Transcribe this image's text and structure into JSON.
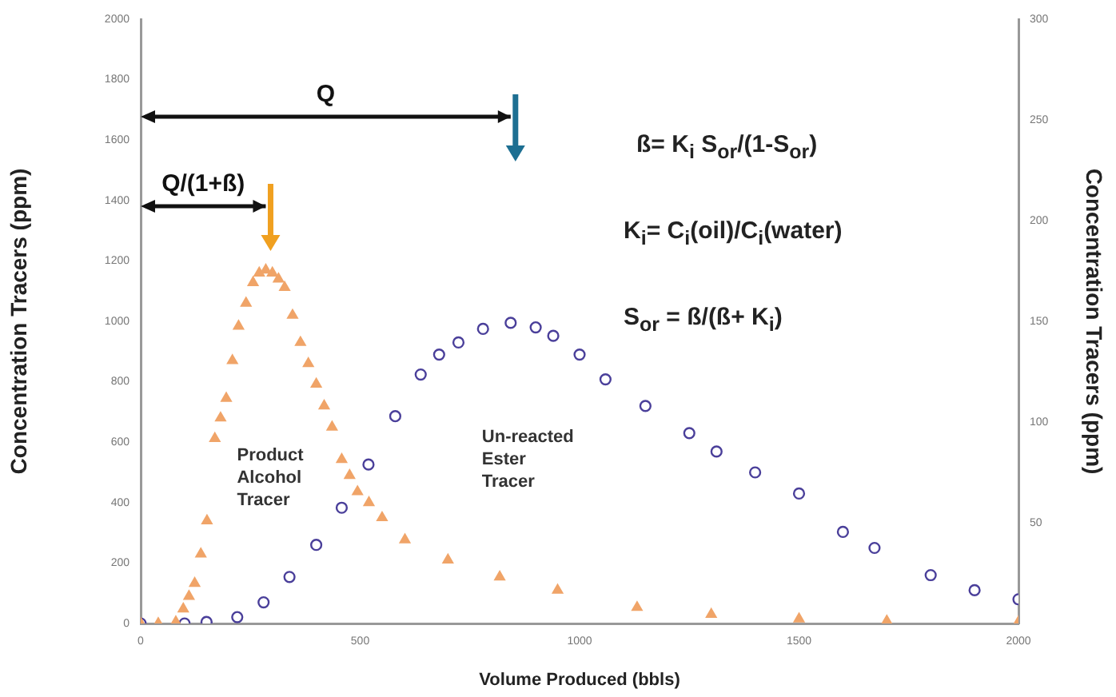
{
  "chart_data": {
    "type": "scatter",
    "xlabel": "Volume Produced (bbls)",
    "ylabel": "Concentration Tracers (ppm)",
    "y2label": "Concentration Tracers (ppm)",
    "xlim": [
      0,
      2000
    ],
    "xticks": [
      0,
      500,
      1000,
      1500,
      2000
    ],
    "ylim": [
      0,
      2000
    ],
    "yticks": [
      0,
      200,
      400,
      600,
      800,
      1000,
      1200,
      1400,
      1600,
      1800,
      2000
    ],
    "y2lim": [
      0,
      300
    ],
    "y2ticks": [
      50,
      100,
      150,
      200,
      250,
      300
    ],
    "grid": false,
    "legend": false,
    "series": [
      {
        "name": "Product Alcohol Tracer",
        "color": "#f0a468",
        "marker": "triangle",
        "x": [
          0,
          40,
          80,
          97,
          110,
          123,
          137,
          151,
          169,
          182,
          195,
          209,
          223,
          240,
          256,
          270,
          285,
          300,
          314,
          328,
          346,
          364,
          382,
          400,
          418,
          436,
          458,
          476,
          494,
          520,
          550,
          602,
          700,
          818,
          950,
          1131,
          1300,
          1500,
          1700,
          2000
        ],
        "values": [
          0,
          0,
          5,
          48,
          90,
          133,
          230,
          340,
          612,
          680,
          745,
          870,
          984,
          1060,
          1128,
          1160,
          1170,
          1160,
          1140,
          1112,
          1020,
          930,
          860,
          792,
          720,
          650,
          543,
          490,
          436,
          400,
          350,
          277,
          210,
          154,
          110,
          53,
          30,
          15,
          8,
          5
        ]
      },
      {
        "name": "Un-reacted Ester Tracer",
        "color": "#4a3f9a",
        "marker": "circle",
        "x": [
          0,
          100,
          150,
          220,
          280,
          339,
          400,
          458,
          519,
          580,
          638,
          680,
          724,
          780,
          843,
          900,
          940,
          1000,
          1059,
          1150,
          1250,
          1312,
          1400,
          1500,
          1600,
          1672,
          1800,
          1900,
          2000
        ],
        "values": [
          0,
          0,
          5,
          21,
          70,
          154,
          260,
          383,
          526,
          686,
          824,
          890,
          930,
          975,
          995,
          980,
          952,
          890,
          808,
          720,
          630,
          569,
          500,
          430,
          303,
          250,
          160,
          110,
          80
        ]
      }
    ],
    "annotations": [
      "Q",
      "Q/(1+ß)",
      "ß= K$_{i}$ S$_{or}$/(1-S$_{or}$)",
      "K$_{i}$= C$_{i}$(oil)/C$_{i}$(water)",
      "S$_{or}$ = ß/(ß+ K$_{i}$)"
    ]
  }
}
